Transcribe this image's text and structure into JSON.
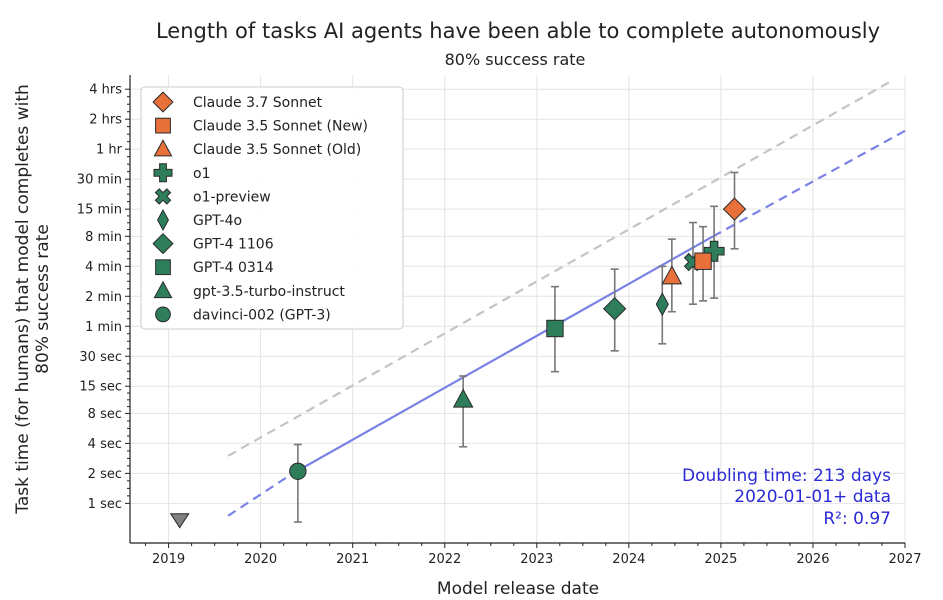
{
  "chart_data": {
    "type": "scatter",
    "title": "Length of tasks AI agents have been able to complete autonomously",
    "subtitle": "80% success rate",
    "xlabel": "Model release date",
    "ylabel": "Task time (for humans) that model completes with 80% success rate",
    "x_scale": "date",
    "y_scale": "log",
    "xlim": [
      "2018-08-01",
      "2027-01-01"
    ],
    "ylim_seconds": [
      0.4,
      20000
    ],
    "x_ticks": [
      "2019",
      "2020",
      "2021",
      "2022",
      "2023",
      "2024",
      "2025",
      "2026",
      "2027"
    ],
    "y_ticks": [
      {
        "label": "1 sec",
        "seconds": 1
      },
      {
        "label": "2 sec",
        "seconds": 2
      },
      {
        "label": "4 sec",
        "seconds": 4
      },
      {
        "label": "8 sec",
        "seconds": 8
      },
      {
        "label": "15 sec",
        "seconds": 15
      },
      {
        "label": "30 sec",
        "seconds": 30
      },
      {
        "label": "1 min",
        "seconds": 60
      },
      {
        "label": "2 min",
        "seconds": 120
      },
      {
        "label": "4 min",
        "seconds": 240
      },
      {
        "label": "8 min",
        "seconds": 480
      },
      {
        "label": "15 min",
        "seconds": 900
      },
      {
        "label": "30 min",
        "seconds": 1800
      },
      {
        "label": "1 hr",
        "seconds": 3600
      },
      {
        "label": "2 hrs",
        "seconds": 7200
      },
      {
        "label": "4 hrs",
        "seconds": 14400
      }
    ],
    "grid": true,
    "legend_position": "top-left",
    "colors": {
      "orange": "#e8703a",
      "green": "#2e7d5b",
      "trend": "#7a82e6",
      "gray_trend": "#c4c4c4",
      "edge": "#2a2a2a",
      "error_bar": "#777777"
    },
    "series": [
      {
        "name": "Claude 3.7 Sonnet",
        "marker": "diamond",
        "color": "orange",
        "x": "2025-02-24",
        "y_seconds": 900,
        "y_low_seconds": 360,
        "y_high_seconds": 2100
      },
      {
        "name": "Claude 3.5 Sonnet (New)",
        "marker": "square",
        "color": "orange",
        "x": "2024-10-22",
        "y_seconds": 270,
        "y_low_seconds": 108,
        "y_high_seconds": 600
      },
      {
        "name": "Claude 3.5 Sonnet (Old)",
        "marker": "triangle",
        "color": "orange",
        "x": "2024-06-20",
        "y_seconds": 190,
        "y_low_seconds": 84,
        "y_high_seconds": 450
      },
      {
        "name": "o1",
        "marker": "plus",
        "color": "green",
        "x": "2024-12-05",
        "y_seconds": 340,
        "y_low_seconds": 115,
        "y_high_seconds": 960
      },
      {
        "name": "o1-preview",
        "marker": "x",
        "color": "green",
        "x": "2024-09-12",
        "y_seconds": 265,
        "y_low_seconds": 100,
        "y_high_seconds": 660
      },
      {
        "name": "GPT-4o",
        "marker": "thin_diamond",
        "color": "green",
        "x": "2024-05-13",
        "y_seconds": 100,
        "y_low_seconds": 40,
        "y_high_seconds": 240
      },
      {
        "name": "GPT-4 1106",
        "marker": "diamond",
        "color": "green",
        "x": "2023-11-06",
        "y_seconds": 90,
        "y_low_seconds": 34,
        "y_high_seconds": 225
      },
      {
        "name": "GPT-4 0314",
        "marker": "square",
        "color": "green",
        "x": "2023-03-14",
        "y_seconds": 57,
        "y_low_seconds": 21,
        "y_high_seconds": 150
      },
      {
        "name": "gpt-3.5-turbo-instruct",
        "marker": "triangle",
        "color": "green",
        "x": "2022-03-15",
        "y_seconds": 11,
        "y_low_seconds": 3.7,
        "y_high_seconds": 19
      },
      {
        "name": "davinci-002 (GPT-3)",
        "marker": "circle",
        "color": "green",
        "x": "2020-05-28",
        "y_seconds": 2.1,
        "y_low_seconds": 0.65,
        "y_high_seconds": 3.9
      }
    ],
    "extra_points": [
      {
        "marker": "triangle_down",
        "color": "#808080",
        "x": "2019-02-14",
        "y_seconds": 0.68
      }
    ],
    "trend_lines": [
      {
        "style": "solid",
        "color": "trend",
        "points": [
          {
            "x": "2020-05-01",
            "y_seconds": 1.95
          },
          {
            "x": "2024-12-01",
            "y_seconds": 480
          }
        ]
      },
      {
        "style": "dashed",
        "color": "trend",
        "points": [
          {
            "x": "2019-08-25",
            "y_seconds": 0.75
          },
          {
            "x": "2020-05-01",
            "y_seconds": 1.95
          }
        ]
      },
      {
        "style": "dashed",
        "color": "trend",
        "points": [
          {
            "x": "2024-12-01",
            "y_seconds": 480
          },
          {
            "x": "2027-01-01",
            "y_seconds": 5500
          }
        ]
      },
      {
        "style": "dashed",
        "color": "gray_trend",
        "points": [
          {
            "x": "2019-08-25",
            "y_seconds": 3
          },
          {
            "x": "2026-11-01",
            "y_seconds": 17000
          }
        ]
      }
    ],
    "annotations": [
      "Doubling time: 213 days",
      "2020-01-01+ data",
      "R²: 0.97"
    ]
  }
}
